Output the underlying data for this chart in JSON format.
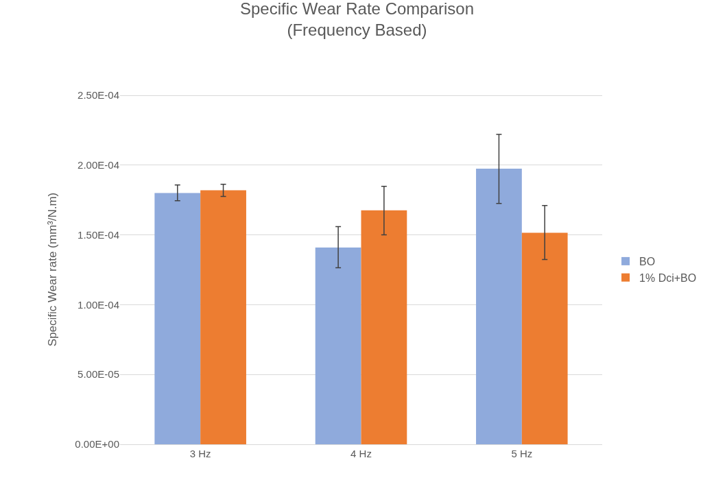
{
  "chart_data": {
    "type": "bar",
    "title": "Specific Wear Rate Comparison\n(Frequency Based)",
    "ylabel": "Specific Wear rate (mm³/N.m)",
    "categories": [
      "3 Hz",
      "4 Hz",
      "5 Hz"
    ],
    "series": [
      {
        "name": "BO",
        "color": "#8faadc",
        "values": [
          0.00018,
          0.000141,
          0.0001975
        ],
        "errors": [
          [
            0.0001745,
            0.0001858
          ],
          [
            0.0001265,
            0.000156
          ],
          [
            0.0001725,
            0.000222
          ]
        ]
      },
      {
        "name": "1% Dci+BO",
        "color": "#ed7d31",
        "values": [
          0.000182,
          0.0001676,
          0.0001515
        ],
        "errors": [
          [
            0.0001775,
            0.0001863
          ],
          [
            0.00015,
            0.0001848
          ],
          [
            0.0001324,
            0.000171
          ]
        ]
      }
    ],
    "ylim": [
      0,
      0.00025
    ],
    "yticks": [
      {
        "value": 0,
        "label": "0.00E+00"
      },
      {
        "value": 5e-05,
        "label": "5.00E-05"
      },
      {
        "value": 0.0001,
        "label": "1.00E-04"
      },
      {
        "value": 0.00015,
        "label": "1.50E-04"
      },
      {
        "value": 0.0002,
        "label": "2.00E-04"
      },
      {
        "value": 0.00025,
        "label": "2.50E-04"
      }
    ],
    "grid": "y",
    "legend": "right"
  }
}
